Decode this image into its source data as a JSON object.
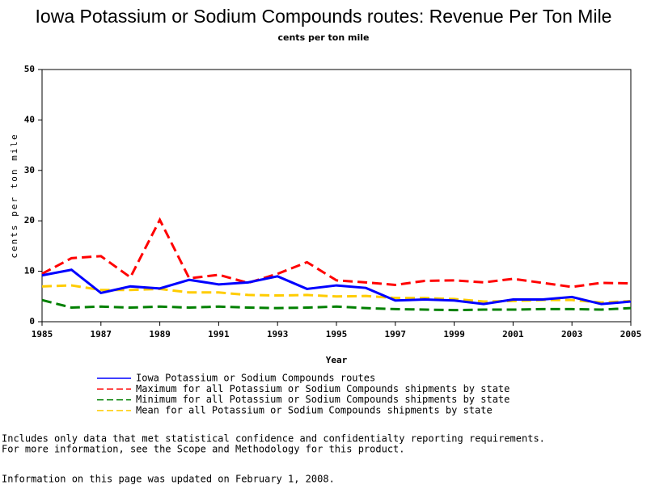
{
  "chart_data": {
    "type": "line",
    "title": "Iowa Potassium or Sodium Compounds routes: Revenue Per Ton Mile",
    "subtitle": "cents per ton mile",
    "x_label": "Year",
    "y_label": "cents per ton mile",
    "x": [
      1985,
      1986,
      1987,
      1988,
      1989,
      1990,
      1991,
      1992,
      1993,
      1994,
      1995,
      1996,
      1997,
      1998,
      1999,
      2000,
      2001,
      2002,
      2003,
      2004,
      2005
    ],
    "xlim": [
      1985,
      2005
    ],
    "xticks": [
      1985,
      1987,
      1989,
      1991,
      1993,
      1995,
      1997,
      1999,
      2001,
      2003,
      2005
    ],
    "ylim": [
      0,
      50
    ],
    "yticks": [
      0,
      10,
      20,
      30,
      40,
      50
    ],
    "series": [
      {
        "name": "Iowa Potassium or Sodium Compounds routes",
        "color": "#0000ff",
        "dashed": false,
        "values": [
          9.2,
          10.3,
          5.7,
          7.0,
          6.6,
          8.3,
          7.4,
          7.8,
          9.0,
          6.5,
          7.2,
          6.7,
          4.2,
          4.4,
          4.2,
          3.5,
          4.4,
          4.4,
          4.9,
          3.5,
          4.0
        ]
      },
      {
        "name": "Maximum for all Potassium or Sodium Compounds shipments by state",
        "color": "#ff0000",
        "dashed": true,
        "values": [
          9.5,
          12.6,
          13.0,
          8.8,
          20.2,
          8.6,
          9.3,
          7.7,
          9.5,
          11.8,
          8.2,
          7.8,
          7.3,
          8.1,
          8.2,
          7.8,
          8.5,
          7.7,
          6.9,
          7.7,
          7.6
        ]
      },
      {
        "name": "Minimum for all Potassium or Sodium Compounds shipments by state",
        "color": "#008000",
        "dashed": true,
        "values": [
          4.3,
          2.8,
          3.0,
          2.8,
          3.0,
          2.8,
          3.0,
          2.8,
          2.7,
          2.8,
          3.0,
          2.7,
          2.5,
          2.4,
          2.3,
          2.4,
          2.4,
          2.5,
          2.5,
          2.4,
          2.7
        ]
      },
      {
        "name": "Mean for all Potassium or Sodium Compounds shipments by state",
        "color": "#ffcc00",
        "dashed": true,
        "values": [
          7.0,
          7.2,
          6.3,
          6.3,
          6.5,
          5.8,
          5.8,
          5.3,
          5.2,
          5.3,
          5.0,
          5.1,
          4.7,
          4.7,
          4.5,
          4.0,
          4.1,
          4.3,
          4.3,
          3.8,
          4.1
        ]
      }
    ]
  },
  "notes": [
    "Includes only data that met statistical confidence and confidentialty reporting requirements.",
    "For more information, see the Scope and Methodology for this product.",
    "Information on this page was updated on February 1, 2008."
  ]
}
